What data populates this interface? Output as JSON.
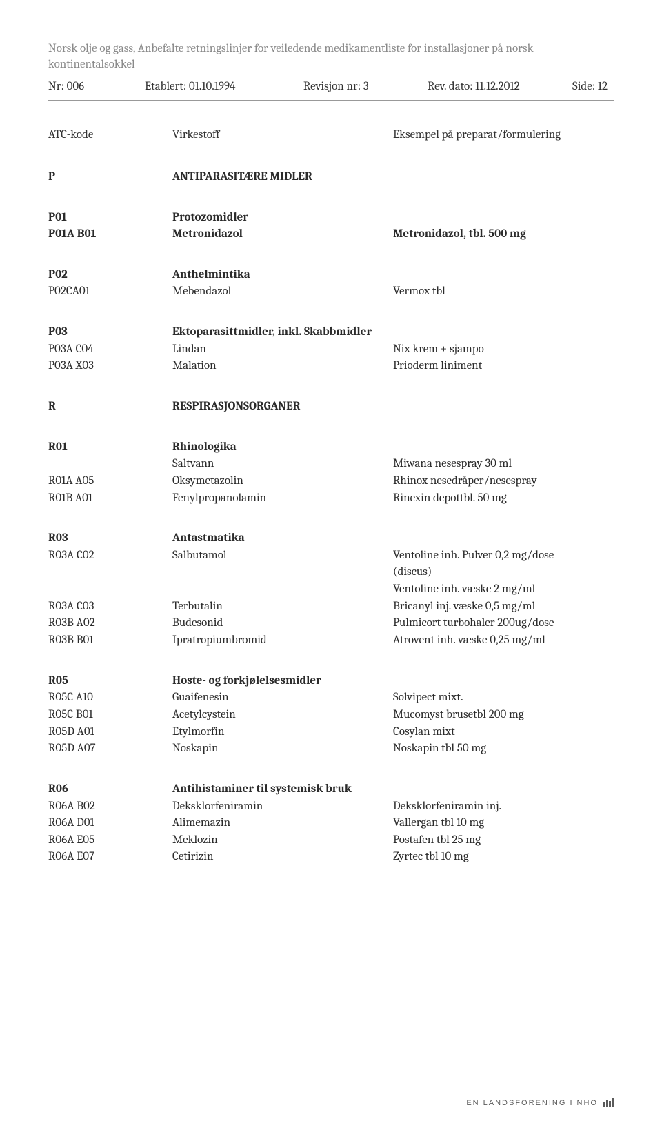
{
  "header": {
    "title_line1": "Norsk olje og gass, Anbefalte retningslinjer for veiledende medikamentliste for installasjoner på norsk",
    "title_line2": "kontinentalsokkel",
    "nr_label": "Nr: 006",
    "etablert": "Etablert: 01.10.1994",
    "revisjon": "Revisjon nr: 3",
    "rev_dato": "Rev. dato: 11.12.2012",
    "side": "Side: 12"
  },
  "columns": {
    "h1": "ATC-kode",
    "h2": "Virkestoff",
    "h3": "Eksempel på preparat/formulering"
  },
  "sections": [
    {
      "rows": [
        {
          "c1": "P",
          "c2": "ANTIPARASITÆRE MIDLER",
          "c3": "",
          "b1": true,
          "b2": true
        }
      ]
    },
    {
      "rows": [
        {
          "c1": "P01",
          "c2": "Protozomidler",
          "c3": "",
          "b1": true,
          "b2": true
        },
        {
          "c1": "P01A B01",
          "c2": "Metronidazol",
          "c3": "Metronidazol, tbl. 500 mg",
          "b1": true,
          "b2": true,
          "b3": true
        }
      ]
    },
    {
      "rows": [
        {
          "c1": "P02",
          "c2": "Anthelmintika",
          "c3": "",
          "b1": true,
          "b2": true
        },
        {
          "c1": "P02CA01",
          "c2": "Mebendazol",
          "c3": "Vermox tbl"
        }
      ]
    },
    {
      "rows": [
        {
          "c1": "P03",
          "c2": "Ektoparasittmidler, inkl. Skabbmidler",
          "c3": "",
          "b1": true,
          "b2": true
        },
        {
          "c1": "P03A C04",
          "c2": "Lindan",
          "c3": "Nix krem + sjampo"
        },
        {
          "c1": "P03A X03",
          "c2": "Malation",
          "c3": "Prioderm liniment"
        }
      ]
    },
    {
      "rows": [
        {
          "c1": "R",
          "c2": "RESPIRASJONSORGANER",
          "c3": "",
          "b1": true,
          "b2": true
        }
      ]
    },
    {
      "rows": [
        {
          "c1": "R01",
          "c2": "Rhinologika",
          "c3": "",
          "b1": true,
          "b2": true
        },
        {
          "c1": "",
          "c2": "Saltvann",
          "c3": "Miwana nesespray 30 ml"
        },
        {
          "c1": "R01A A05",
          "c2": "Oksymetazolin",
          "c3": "Rhinox nesedråper/nesespray"
        },
        {
          "c1": "R01B A01",
          "c2": "Fenylpropanolamin",
          "c3": "Rinexin depottbl. 50 mg"
        }
      ]
    },
    {
      "rows": [
        {
          "c1": "R03",
          "c2": "Antastmatika",
          "c3": "",
          "b1": true,
          "b2": true
        },
        {
          "c1": "R03A C02",
          "c2": "Salbutamol",
          "c3": "Ventoline inh. Pulver 0,2 mg/dose"
        },
        {
          "c1": "",
          "c2": "",
          "c3": "(discus)"
        },
        {
          "c1": "",
          "c2": "",
          "c3": "Ventoline inh. væske 2 mg/ml"
        },
        {
          "c1": "R03A C03",
          "c2": "Terbutalin",
          "c3": "Bricanyl inj. væske 0,5 mg/ml"
        },
        {
          "c1": "R03B A02",
          "c2": "Budesonid",
          "c3": "Pulmicort turbohaler 200ug/dose"
        },
        {
          "c1": "R03B B01",
          "c2": "Ipratropiumbromid",
          "c3": "Atrovent inh. væske 0,25 mg/ml"
        }
      ]
    },
    {
      "rows": [
        {
          "c1": "R05",
          "c2": "Hoste- og forkjølelsesmidler",
          "c3": "",
          "b1": true,
          "b2": true
        },
        {
          "c1": "R05C A10",
          "c2": "Guaifenesin",
          "c3": "Solvipect mixt."
        },
        {
          "c1": "R05C B01",
          "c2": "Acetylcystein",
          "c3": "Mucomyst brusetbl 200 mg"
        },
        {
          "c1": "R05D A01",
          "c2": "Etylmorfin",
          "c3": "Cosylan mixt"
        },
        {
          "c1": "R05D A07",
          "c2": "Noskapin",
          "c3": "Noskapin tbl 50 mg"
        }
      ]
    },
    {
      "rows": [
        {
          "c1": "R06",
          "c2": "Antihistaminer til systemisk bruk",
          "c3": "",
          "b1": true,
          "b2": true
        },
        {
          "c1": "R06A B02",
          "c2": "Deksklorfeniramin",
          "c3": "Deksklorfeniramin inj."
        },
        {
          "c1": "R06A D01",
          "c2": "Alimemazin",
          "c3": "Vallergan tbl 10 mg"
        },
        {
          "c1": "R06A E05",
          "c2": "Meklozin",
          "c3": "Postafen tbl 25 mg"
        },
        {
          "c1": "R06A E07",
          "c2": "Cetirizin",
          "c3": "Zyrtec tbl 10 mg"
        }
      ]
    }
  ],
  "footer": {
    "text": "EN LANDSFORENING I NHO"
  }
}
